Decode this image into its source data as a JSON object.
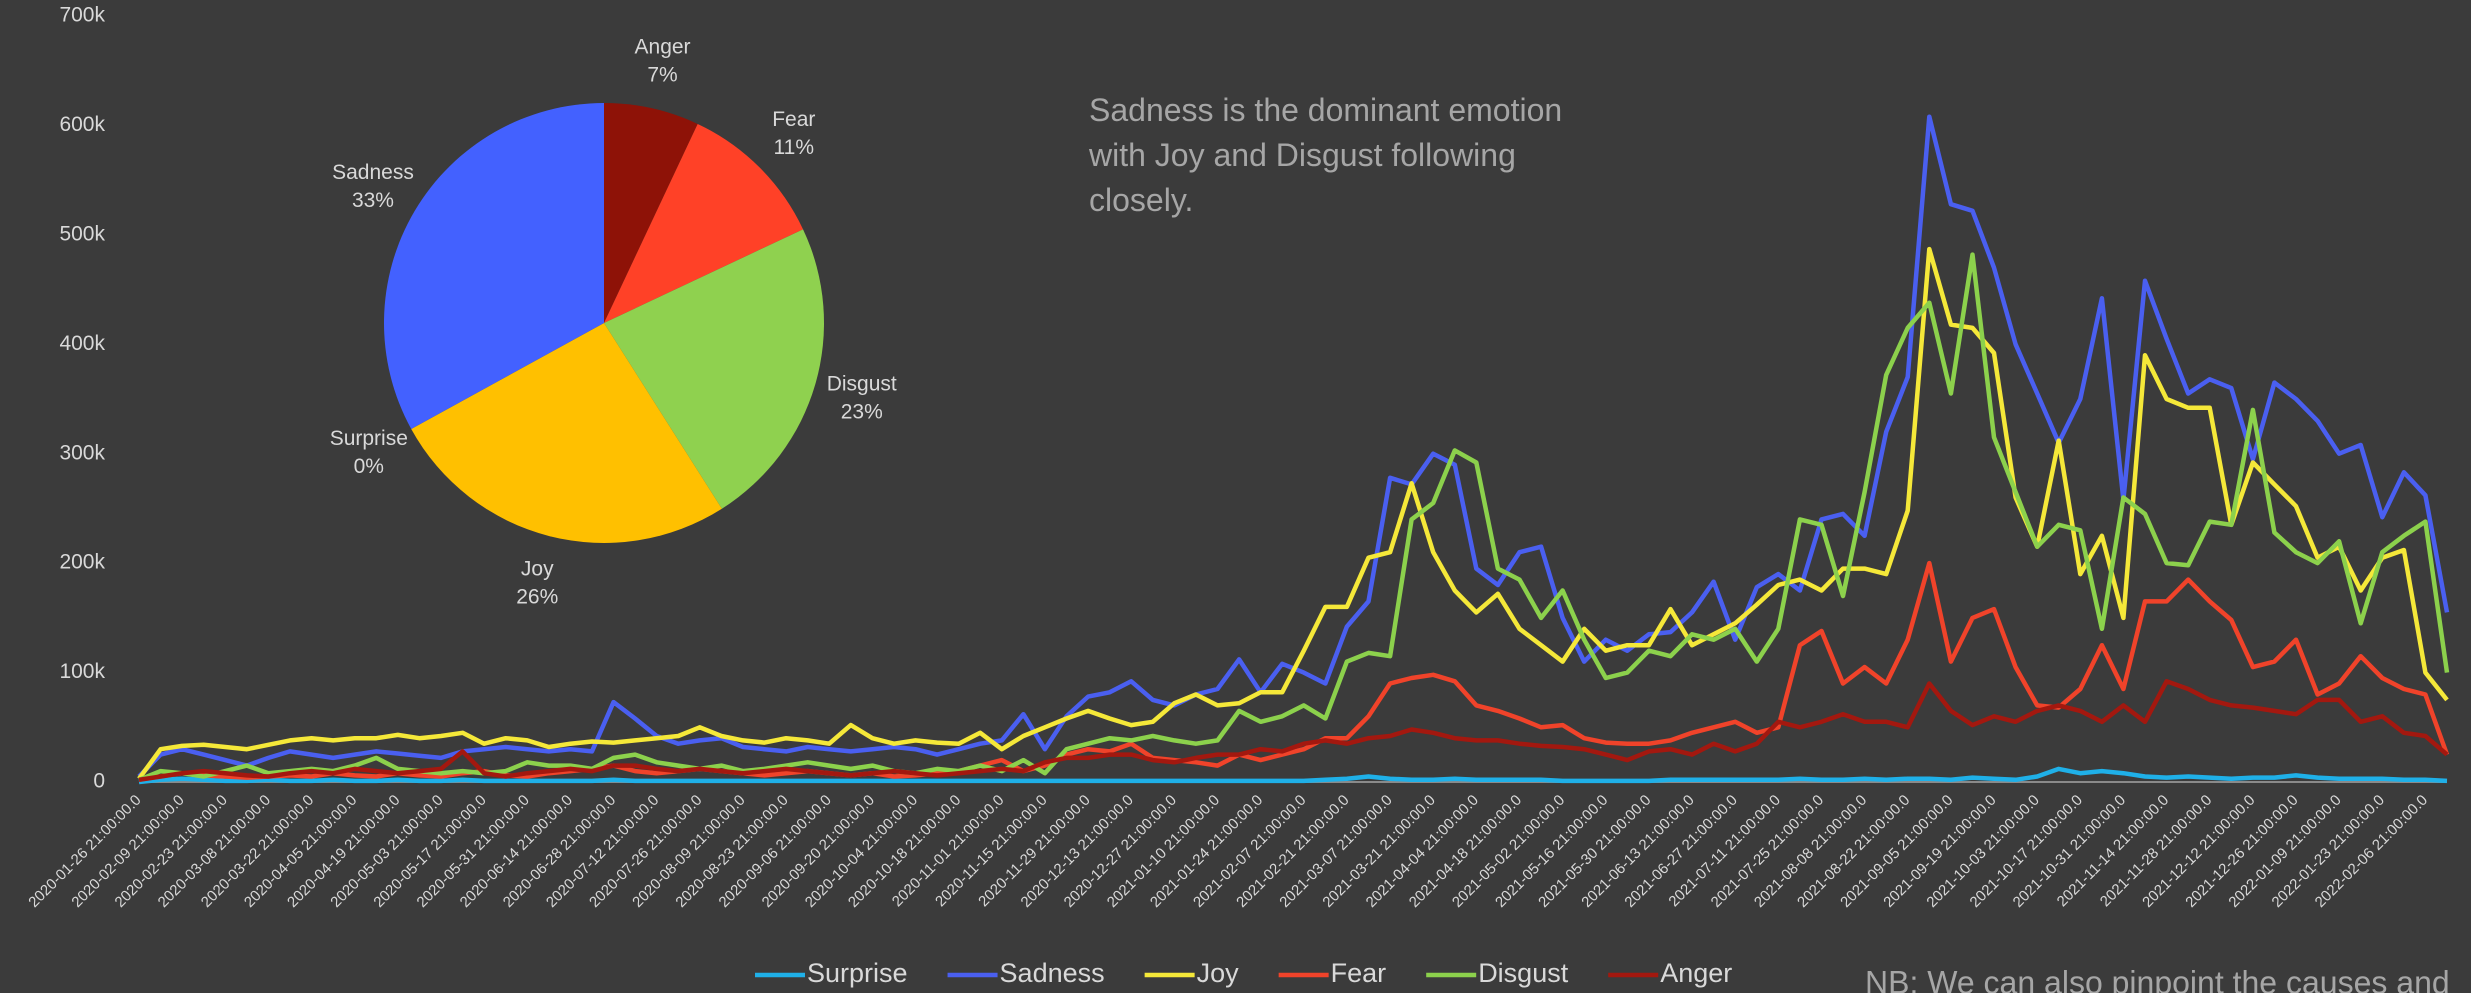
{
  "chart_data": [
    {
      "type": "line",
      "categories": [
        "2020-01-26 21:00:00.0",
        null,
        "2020-02-09 21:00:00.0",
        null,
        "2020-02-23 21:00:00.0",
        null,
        "2020-03-08 21:00:00.0",
        null,
        "2020-03-22 21:00:00.0",
        null,
        "2020-04-05 21:00:00.0",
        null,
        "2020-04-19 21:00:00.0",
        null,
        "2020-05-03 21:00:00.0",
        null,
        "2020-05-17 21:00:00.0",
        null,
        "2020-05-31 21:00:00.0",
        null,
        "2020-06-14 21:00:00.0",
        null,
        "2020-06-28 21:00:00.0",
        null,
        "2020-07-12 21:00:00.0",
        null,
        "2020-07-26 21:00:00.0",
        null,
        "2020-08-09 21:00:00.0",
        null,
        "2020-08-23 21:00:00.0",
        null,
        "2020-09-06 21:00:00.0",
        null,
        "2020-09-20 21:00:00.0",
        null,
        "2020-10-04 21:00:00.0",
        null,
        "2020-10-18 21:00:00.0",
        null,
        "2020-11-01 21:00:00.0",
        null,
        "2020-11-15 21:00:00.0",
        null,
        "2020-11-29 21:00:00.0",
        null,
        "2020-12-13 21:00:00.0",
        null,
        "2020-12-27 21:00:00.0",
        null,
        "2021-01-10 21:00:00.0",
        null,
        "2021-01-24 21:00:00.0",
        null,
        "2021-02-07 21:00:00.0",
        null,
        "2021-02-21 21:00:00.0",
        null,
        "2021-03-07 21:00:00.0",
        null,
        "2021-03-21 21:00:00.0",
        null,
        "2021-04-04 21:00:00.0",
        null,
        "2021-04-18 21:00:00.0",
        null,
        "2021-05-02 21:00:00.0",
        null,
        "2021-05-16 21:00:00.0",
        null,
        "2021-05-30 21:00:00.0",
        null,
        "2021-06-13 21:00:00.0",
        null,
        "2021-06-27 21:00:00.0",
        null,
        "2021-07-11 21:00:00.0",
        null,
        "2021-07-25 21:00:00.0",
        null,
        "2021-08-08 21:00:00.0",
        null,
        "2021-08-22 21:00:00.0",
        null,
        "2021-09-05 21:00:00.0",
        null,
        "2021-09-19 21:00:00.0",
        null,
        "2021-10-03 21:00:00.0",
        null,
        "2021-10-17 21:00:00.0",
        null,
        "2021-10-31 21:00:00.0",
        null,
        "2021-11-14 21:00:00.0",
        null,
        "2021-11-28 21:00:00.0",
        null,
        "2021-12-12 21:00:00.0",
        null,
        "2021-12-26 21:00:00.0",
        null,
        "2022-01-09 21:00:00.0",
        null,
        "2022-01-23 21:00:00.0",
        null,
        "2022-02-06 21:00:00.0",
        null
      ],
      "series": [
        {
          "name": "Surprise",
          "color": "#1fb0e8",
          "values": [
            0,
            2000,
            3000,
            2000,
            1000,
            1000,
            2000,
            1000,
            1000,
            2000,
            1000,
            1000,
            2000,
            1000,
            1000,
            2000,
            1000,
            1000,
            1000,
            1000,
            1000,
            1000,
            2000,
            1000,
            1000,
            1000,
            1000,
            1000,
            1000,
            1000,
            1000,
            1000,
            1000,
            1000,
            1000,
            1000,
            1000,
            1000,
            1000,
            1000,
            1000,
            1000,
            1000,
            1000,
            1000,
            1000,
            1000,
            1000,
            1000,
            1000,
            1000,
            1000,
            1000,
            1000,
            1000,
            2000,
            3000,
            5000,
            3000,
            2000,
            2000,
            3000,
            2000,
            2000,
            2000,
            2000,
            1000,
            1000,
            1000,
            1000,
            1000,
            2000,
            2000,
            2000,
            2000,
            2000,
            2000,
            3000,
            2000,
            2000,
            3000,
            2000,
            3000,
            3000,
            2000,
            4000,
            3000,
            2000,
            5000,
            12000,
            8000,
            10000,
            8000,
            5000,
            4000,
            5000,
            4000,
            3000,
            4000,
            4000,
            6000,
            4000,
            3000,
            3000,
            3000,
            2000,
            2000,
            1000
          ]
        },
        {
          "name": "Sadness",
          "color": "#4a5ff0",
          "values": [
            5000,
            25000,
            30000,
            25000,
            20000,
            15000,
            22000,
            28000,
            25000,
            22000,
            25000,
            28000,
            26000,
            24000,
            22000,
            28000,
            30000,
            32000,
            30000,
            28000,
            30000,
            28000,
            73000,
            58000,
            42000,
            35000,
            38000,
            40000,
            32000,
            30000,
            28000,
            32000,
            30000,
            28000,
            30000,
            32000,
            30000,
            25000,
            30000,
            35000,
            38000,
            62000,
            30000,
            60000,
            78000,
            82000,
            92000,
            75000,
            70000,
            80000,
            85000,
            112000,
            82000,
            108000,
            100000,
            90000,
            142000,
            165000,
            278000,
            272000,
            300000,
            290000,
            195000,
            180000,
            210000,
            215000,
            150000,
            110000,
            130000,
            120000,
            135000,
            137000,
            155000,
            183000,
            130000,
            178000,
            190000,
            175000,
            240000,
            245000,
            225000,
            320000,
            370000,
            608000,
            528000,
            522000,
            470000,
            400000,
            355000,
            310000,
            350000,
            442000,
            258000,
            458000,
            405000,
            355000,
            368000,
            360000,
            295000,
            365000,
            350000,
            330000,
            300000,
            308000,
            242000,
            283000,
            262000,
            155000
          ]
        },
        {
          "name": "Joy",
          "color": "#f5e839",
          "values": [
            3000,
            30000,
            33000,
            34000,
            32000,
            30000,
            34000,
            38000,
            40000,
            38000,
            40000,
            40000,
            43000,
            40000,
            42000,
            45000,
            35000,
            40000,
            38000,
            32000,
            35000,
            37000,
            36000,
            38000,
            40000,
            42000,
            50000,
            42000,
            38000,
            36000,
            40000,
            38000,
            35000,
            52000,
            40000,
            35000,
            38000,
            36000,
            35000,
            45000,
            30000,
            42000,
            50000,
            58000,
            65000,
            58000,
            52000,
            55000,
            72000,
            80000,
            70000,
            72000,
            82000,
            82000,
            120000,
            160000,
            160000,
            205000,
            210000,
            273000,
            210000,
            175000,
            155000,
            172000,
            140000,
            125000,
            110000,
            140000,
            120000,
            125000,
            125000,
            158000,
            125000,
            135000,
            145000,
            162000,
            180000,
            185000,
            175000,
            195000,
            195000,
            190000,
            248000,
            487000,
            418000,
            415000,
            392000,
            260000,
            215000,
            312000,
            190000,
            225000,
            150000,
            390000,
            350000,
            342000,
            342000,
            235000,
            292000,
            272000,
            252000,
            205000,
            215000,
            175000,
            205000,
            212000,
            100000,
            75000
          ]
        },
        {
          "name": "Fear",
          "color": "#f0432a",
          "values": [
            2000,
            5000,
            8000,
            6000,
            5000,
            4000,
            5000,
            6000,
            5000,
            8000,
            6000,
            5000,
            8000,
            6000,
            5000,
            8000,
            10000,
            6000,
            5000,
            8000,
            10000,
            12000,
            15000,
            10000,
            8000,
            10000,
            12000,
            10000,
            8000,
            6000,
            8000,
            10000,
            8000,
            6000,
            8000,
            5000,
            6000,
            8000,
            10000,
            15000,
            20000,
            10000,
            15000,
            25000,
            30000,
            28000,
            35000,
            22000,
            20000,
            18000,
            15000,
            25000,
            20000,
            25000,
            30000,
            40000,
            40000,
            60000,
            90000,
            95000,
            98000,
            92000,
            70000,
            65000,
            58000,
            50000,
            52000,
            40000,
            36000,
            35000,
            35000,
            38000,
            45000,
            50000,
            55000,
            45000,
            50000,
            125000,
            138000,
            90000,
            105000,
            90000,
            130000,
            200000,
            110000,
            150000,
            158000,
            105000,
            70000,
            68000,
            85000,
            125000,
            85000,
            165000,
            165000,
            185000,
            165000,
            148000,
            105000,
            110000,
            130000,
            80000,
            90000,
            115000,
            95000,
            85000,
            80000,
            25000
          ]
        },
        {
          "name": "Disgust",
          "color": "#8cd14c",
          "values": [
            2000,
            10000,
            8000,
            5000,
            10000,
            15000,
            8000,
            10000,
            12000,
            10000,
            15000,
            22000,
            12000,
            10000,
            8000,
            10000,
            8000,
            10000,
            18000,
            15000,
            15000,
            12000,
            22000,
            25000,
            18000,
            15000,
            12000,
            15000,
            10000,
            12000,
            15000,
            18000,
            15000,
            12000,
            15000,
            10000,
            8000,
            12000,
            10000,
            15000,
            10000,
            20000,
            8000,
            30000,
            35000,
            40000,
            38000,
            42000,
            38000,
            35000,
            38000,
            65000,
            55000,
            60000,
            70000,
            58000,
            110000,
            118000,
            115000,
            240000,
            255000,
            303000,
            292000,
            195000,
            185000,
            150000,
            175000,
            130000,
            95000,
            100000,
            120000,
            115000,
            135000,
            130000,
            140000,
            110000,
            140000,
            240000,
            235000,
            170000,
            265000,
            372000,
            415000,
            438000,
            355000,
            482000,
            315000,
            265000,
            215000,
            235000,
            230000,
            140000,
            260000,
            245000,
            200000,
            198000,
            238000,
            235000,
            340000,
            228000,
            210000,
            200000,
            220000,
            145000,
            210000,
            225000,
            238000,
            100000
          ]
        },
        {
          "name": "Anger",
          "color": "#a3180f",
          "values": [
            2000,
            5000,
            8000,
            10000,
            8000,
            6000,
            5000,
            8000,
            10000,
            8000,
            12000,
            10000,
            8000,
            10000,
            12000,
            28000,
            8000,
            5000,
            8000,
            10000,
            12000,
            10000,
            15000,
            15000,
            12000,
            10000,
            12000,
            10000,
            8000,
            10000,
            12000,
            10000,
            8000,
            6000,
            8000,
            10000,
            8000,
            6000,
            8000,
            10000,
            12000,
            10000,
            18000,
            22000,
            22000,
            25000,
            25000,
            20000,
            18000,
            22000,
            25000,
            25000,
            30000,
            28000,
            35000,
            38000,
            35000,
            40000,
            42000,
            48000,
            45000,
            40000,
            38000,
            38000,
            35000,
            33000,
            32000,
            30000,
            25000,
            20000,
            28000,
            30000,
            25000,
            35000,
            28000,
            35000,
            55000,
            50000,
            55000,
            62000,
            55000,
            55000,
            50000,
            90000,
            65000,
            52000,
            60000,
            55000,
            65000,
            70000,
            65000,
            55000,
            70000,
            55000,
            92000,
            85000,
            75000,
            70000,
            68000,
            65000,
            62000,
            75000,
            75000,
            55000,
            60000,
            45000,
            42000,
            25000
          ]
        }
      ],
      "ylim": [
        0,
        700000
      ],
      "yticks": [
        0,
        {
          "value": 100000,
          "label": "100k"
        },
        {
          "value": 200000,
          "label": "200k"
        },
        {
          "value": 300000,
          "label": "300k"
        },
        {
          "value": 400000,
          "label": "400k"
        },
        {
          "value": 500000,
          "label": "500k"
        },
        {
          "value": 600000,
          "label": "600k"
        },
        {
          "value": 700000,
          "label": "700k"
        }
      ],
      "grid": false,
      "legend": "bottom",
      "annotations": [
        "Sadness is the dominant emotion with Joy and Disgust following closely.",
        "NB: We can also pinpoint the causes and"
      ]
    },
    {
      "type": "pie",
      "categories": [
        "Anger",
        "Fear",
        "Disgust",
        "Joy",
        "Surprise",
        "Sadness"
      ],
      "values": [
        7,
        11,
        23,
        26,
        0,
        33
      ],
      "value_labels": [
        "7%",
        "11%",
        "23%",
        "26%",
        "0%",
        "33%"
      ],
      "colors": [
        "#8e1207",
        "#ff4127",
        "#8fd14f",
        "#ffc000",
        "#2fb7e6",
        "#4361ff"
      ]
    }
  ]
}
